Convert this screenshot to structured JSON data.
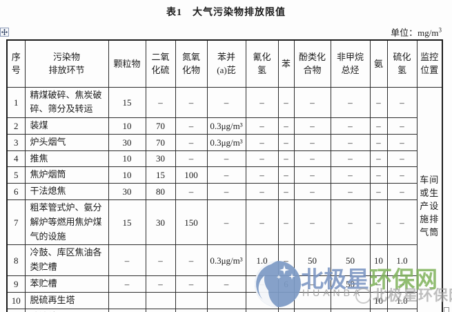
{
  "title": "表1　大气污染物排放限值",
  "unit": {
    "prefix": "单位：mg/m",
    "sup": "3"
  },
  "table": {
    "headers": [
      "序\n号",
      "污染物\n排放环节",
      "颗粒物",
      "二氧\n化硫",
      "氮氧\n化物",
      "苯并\n(a)芘",
      "氰化\n氢",
      "苯",
      "酚类化\n合物",
      "非甲烷\n总烃",
      "氨",
      "硫化\n氢",
      "监控\n位置"
    ],
    "monitor_location_lines": [
      "车间",
      "或生",
      "产设",
      "施排",
      "气筒"
    ],
    "rows": [
      {
        "no": "1",
        "name": "精煤破碎、焦炭破碎、筛分及转运",
        "values": [
          "15",
          "–",
          "–",
          "–",
          "–",
          "–",
          "–",
          "–",
          "–",
          "–"
        ]
      },
      {
        "no": "2",
        "name": "装煤",
        "values": [
          "10",
          "70",
          "–",
          "0.3μg/m³",
          "–",
          "–",
          "–",
          "–",
          "–",
          "–"
        ]
      },
      {
        "no": "3",
        "name": "炉头烟气",
        "values": [
          "30",
          "70",
          "–",
          "0.3μg/m³",
          "–",
          "–",
          "–",
          "–",
          "–",
          "–"
        ]
      },
      {
        "no": "4",
        "name": "推焦",
        "values": [
          "10",
          "30",
          "–",
          "–",
          "–",
          "–",
          "–",
          "–",
          "–",
          "–"
        ]
      },
      {
        "no": "5",
        "name": "焦炉烟筒",
        "values": [
          "10",
          "15",
          "100",
          "–",
          "–",
          "–",
          "–",
          "–",
          "–",
          "–"
        ]
      },
      {
        "no": "6",
        "name": "干法熄焦",
        "values": [
          "30",
          "80",
          "–",
          "–",
          "–",
          "–",
          "–",
          "–",
          "–",
          "–"
        ]
      },
      {
        "no": "7",
        "name": "粗苯管式炉、氨分解炉等燃用焦炉煤气的设施",
        "values": [
          "15",
          "30",
          "150",
          "–",
          "–",
          "–",
          "–",
          "–",
          "–",
          "–"
        ]
      },
      {
        "no": "8",
        "name": "冷鼓、库区焦油各类贮槽",
        "values": [
          "–",
          "–",
          "–",
          "0.3μg/m³",
          "1.0",
          "–",
          "50",
          "50",
          "10",
          "1.0"
        ]
      },
      {
        "no": "9",
        "name": "苯贮槽",
        "values": [
          "–",
          "–",
          "–",
          "–",
          "–",
          "6",
          "–",
          "50",
          "–",
          "–"
        ]
      },
      {
        "no": "10",
        "name": "脱硫再生塔",
        "values": [
          "",
          "",
          "",
          "",
          "",
          "",
          "",
          "",
          "10",
          "1.0"
        ]
      },
      {
        "no": "11",
        "name": "硫铵结晶干燥",
        "values": [
          "50",
          "",
          "–",
          "–",
          "–",
          "–",
          "–",
          "–",
          "10",
          "–"
        ]
      }
    ]
  },
  "watermark": {
    "brand_blue": "北极星",
    "brand_green": "环保网",
    "sub_latin": "HUANBA",
    "sub_outline": "北极星环保网",
    "colors": {
      "blue": "#7792c1",
      "green": "#7fb25a",
      "gray": "#a3a3a3",
      "logo_blue": "#7d9bc6"
    }
  }
}
